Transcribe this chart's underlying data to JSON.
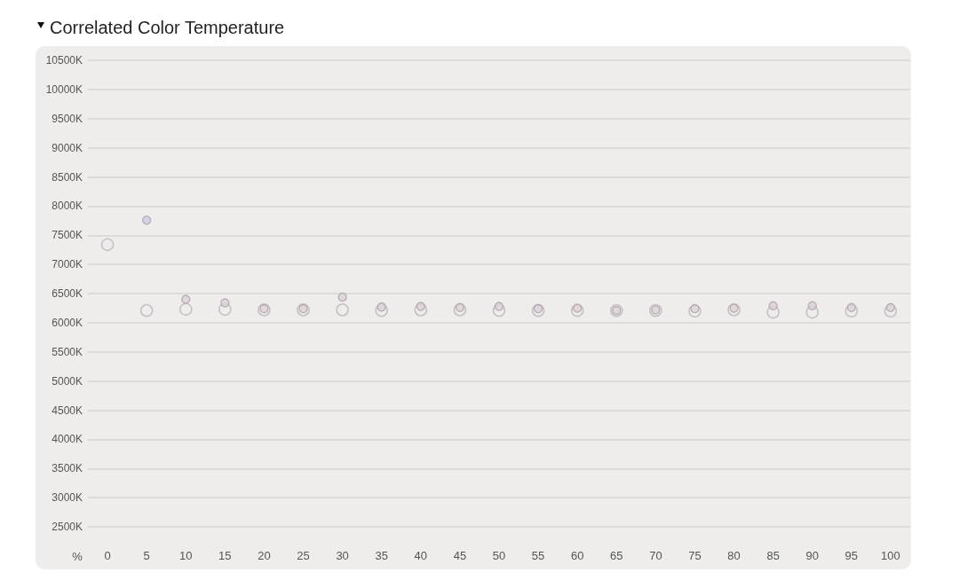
{
  "chart_data": {
    "type": "scatter",
    "title": "Correlated Color Temperature",
    "xlabel": "%",
    "categories": [
      "0",
      "5",
      "10",
      "15",
      "20",
      "25",
      "30",
      "35",
      "40",
      "45",
      "50",
      "55",
      "60",
      "65",
      "70",
      "75",
      "80",
      "85",
      "90",
      "95",
      "100"
    ],
    "series": [
      {
        "color": "#bcb7bc",
        "values": [
          7340,
          6210,
          6230,
          6230,
          6220,
          6220,
          6220,
          6210,
          6220,
          6220,
          6210,
          6210,
          6210,
          6210,
          6210,
          6200,
          6220,
          6180,
          6180,
          6200,
          6200
        ]
      },
      {
        "color": "#ddd0d8",
        "colors": [
          null,
          "#cccae6",
          "#ddd0d8",
          "#ddd0d8",
          "#ddd0d8",
          "#ddd0d8",
          "#ddd0d8",
          "#ddd0d8",
          "#ddd0d8",
          "#ddd0d8",
          "#ddd0d8",
          "#ddd0d8",
          "#ddd0d8",
          "#ddd0d8",
          "#ddd0d8",
          "#ddd0d8",
          "#ddd0d8",
          "#ddd0d8",
          "#ddd0d8",
          "#ddd0d8",
          "#ddd0d8"
        ],
        "values": [
          null,
          7760,
          6400,
          6340,
          6240,
          6240,
          6440,
          6270,
          6280,
          6260,
          6280,
          6240,
          6250,
          6210,
          6220,
          6240,
          6250,
          6290,
          6290,
          6260,
          6260
        ]
      }
    ],
    "ylim": [
      2500,
      10500
    ],
    "yticks": [
      {
        "value": 2500,
        "label": "2500K"
      },
      {
        "value": 3000,
        "label": "3000K"
      },
      {
        "value": 3500,
        "label": "3500K"
      },
      {
        "value": 4000,
        "label": "4000K"
      },
      {
        "value": 4500,
        "label": "4500K"
      },
      {
        "value": 5000,
        "label": "5000K"
      },
      {
        "value": 5500,
        "label": "5500K"
      },
      {
        "value": 6000,
        "label": "6000K"
      },
      {
        "value": 6500,
        "label": "6500K"
      },
      {
        "value": 7000,
        "label": "7000K"
      },
      {
        "value": 7500,
        "label": "7500K"
      },
      {
        "value": 8000,
        "label": "8000K"
      },
      {
        "value": 8500,
        "label": "8500K"
      },
      {
        "value": 9000,
        "label": "9000K"
      },
      {
        "value": 9500,
        "label": "9500K"
      },
      {
        "value": 10000,
        "label": "10000K"
      },
      {
        "value": 10500,
        "label": "10500K"
      }
    ],
    "grid": "y",
    "marker": "circle"
  }
}
